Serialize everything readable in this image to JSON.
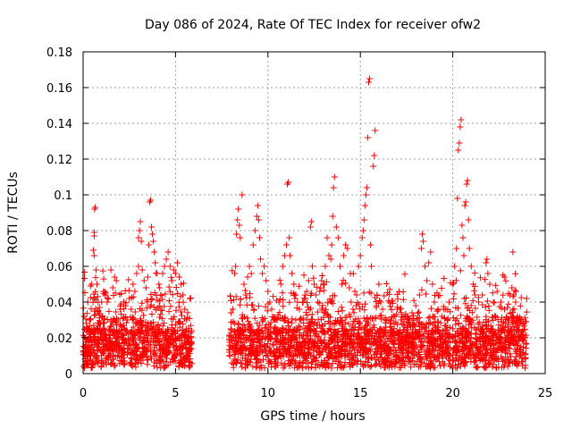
{
  "chart_data": {
    "type": "scatter",
    "title": "Day 086 of 2024, Rate Of TEC Index for receiver ofw2",
    "xlabel": "GPS time / hours",
    "ylabel": "ROTI / TECUs",
    "xlim": [
      0,
      25
    ],
    "ylim": [
      0,
      0.18
    ],
    "x_ticks": [
      0,
      5,
      10,
      15,
      20,
      25
    ],
    "x_tick_labels": [
      "0",
      "5",
      "10",
      "15",
      "20",
      "25"
    ],
    "y_ticks": [
      0,
      0.02,
      0.04,
      0.06,
      0.08,
      0.1,
      0.12,
      0.14,
      0.16,
      0.18
    ],
    "y_tick_labels": [
      "0",
      "0.02",
      "0.04",
      "0.06",
      "0.08",
      "0.1",
      "0.12",
      "0.14",
      "0.16",
      "0.18"
    ],
    "grid": true,
    "marker": "+",
    "marker_color": "#ff0000",
    "data_gap_hours": [
      5.9,
      7.9
    ],
    "series": [
      {
        "name": "ROTI",
        "points": [
          [
            0.05,
            0.032
          ],
          [
            0.1,
            0.02
          ],
          [
            0.15,
            0.014
          ],
          [
            0.2,
            0.026
          ],
          [
            0.25,
            0.04
          ],
          [
            0.3,
            0.018
          ],
          [
            0.35,
            0.03
          ],
          [
            0.4,
            0.049
          ],
          [
            0.45,
            0.05
          ],
          [
            0.5,
            0.016
          ],
          [
            0.55,
            0.069
          ],
          [
            0.6,
            0.066
          ],
          [
            0.6,
            0.077
          ],
          [
            0.6,
            0.079
          ],
          [
            0.62,
            0.092
          ],
          [
            0.65,
            0.093
          ],
          [
            0.7,
            0.058
          ],
          [
            0.75,
            0.05
          ],
          [
            0.8,
            0.035
          ],
          [
            0.9,
            0.028
          ],
          [
            1.0,
            0.04
          ],
          [
            1.1,
            0.046
          ],
          [
            1.2,
            0.044
          ],
          [
            1.3,
            0.04
          ],
          [
            1.4,
            0.022
          ],
          [
            1.5,
            0.03
          ],
          [
            1.6,
            0.048
          ],
          [
            1.7,
            0.054
          ],
          [
            1.8,
            0.052
          ],
          [
            1.9,
            0.03
          ],
          [
            2.0,
            0.036
          ],
          [
            2.1,
            0.026
          ],
          [
            2.2,
            0.04
          ],
          [
            2.3,
            0.038
          ],
          [
            2.4,
            0.03
          ],
          [
            2.5,
            0.042
          ],
          [
            2.6,
            0.036
          ],
          [
            2.7,
            0.05
          ],
          [
            2.8,
            0.046
          ],
          [
            2.9,
            0.056
          ],
          [
            3.0,
            0.06
          ],
          [
            3.0,
            0.076
          ],
          [
            3.05,
            0.08
          ],
          [
            3.1,
            0.085
          ],
          [
            3.15,
            0.074
          ],
          [
            3.2,
            0.058
          ],
          [
            3.3,
            0.052
          ],
          [
            3.4,
            0.048
          ],
          [
            3.5,
            0.054
          ],
          [
            3.55,
            0.072
          ],
          [
            3.6,
            0.096
          ],
          [
            3.65,
            0.097
          ],
          [
            3.7,
            0.082
          ],
          [
            3.75,
            0.078
          ],
          [
            3.8,
            0.074
          ],
          [
            3.85,
            0.068
          ],
          [
            3.9,
            0.062
          ],
          [
            4.0,
            0.056
          ],
          [
            4.1,
            0.05
          ],
          [
            4.2,
            0.044
          ],
          [
            4.3,
            0.056
          ],
          [
            4.4,
            0.06
          ],
          [
            4.5,
            0.064
          ],
          [
            4.6,
            0.068
          ],
          [
            4.7,
            0.06
          ],
          [
            4.8,
            0.052
          ],
          [
            4.9,
            0.058
          ],
          [
            5.0,
            0.056
          ],
          [
            5.1,
            0.062
          ],
          [
            5.2,
            0.054
          ],
          [
            5.3,
            0.05
          ],
          [
            5.4,
            0.044
          ],
          [
            5.5,
            0.036
          ],
          [
            5.6,
            0.03
          ],
          [
            5.7,
            0.024
          ],
          [
            5.8,
            0.016
          ],
          [
            7.9,
            0.012
          ],
          [
            8.0,
            0.034
          ],
          [
            8.1,
            0.036
          ],
          [
            8.2,
            0.056
          ],
          [
            8.25,
            0.06
          ],
          [
            8.3,
            0.078
          ],
          [
            8.35,
            0.086
          ],
          [
            8.4,
            0.092
          ],
          [
            8.45,
            0.083
          ],
          [
            8.5,
            0.076
          ],
          [
            8.6,
            0.1
          ],
          [
            8.7,
            0.05
          ],
          [
            8.8,
            0.044
          ],
          [
            8.9,
            0.054
          ],
          [
            9.0,
            0.06
          ],
          [
            9.1,
            0.056
          ],
          [
            9.2,
            0.072
          ],
          [
            9.3,
            0.08
          ],
          [
            9.4,
            0.088
          ],
          [
            9.45,
            0.094
          ],
          [
            9.5,
            0.086
          ],
          [
            9.55,
            0.076
          ],
          [
            9.6,
            0.064
          ],
          [
            9.7,
            0.056
          ],
          [
            9.8,
            0.06
          ],
          [
            9.9,
            0.052
          ],
          [
            10.0,
            0.046
          ],
          [
            10.1,
            0.04
          ],
          [
            10.2,
            0.036
          ],
          [
            10.3,
            0.03
          ],
          [
            10.4,
            0.026
          ],
          [
            10.5,
            0.03
          ],
          [
            10.6,
            0.04
          ],
          [
            10.7,
            0.05
          ],
          [
            10.8,
            0.06
          ],
          [
            10.9,
            0.066
          ],
          [
            11.0,
            0.072
          ],
          [
            11.05,
            0.106
          ],
          [
            11.1,
            0.107
          ],
          [
            11.15,
            0.076
          ],
          [
            11.2,
            0.066
          ],
          [
            11.3,
            0.056
          ],
          [
            11.4,
            0.05
          ],
          [
            11.5,
            0.044
          ],
          [
            11.6,
            0.04
          ],
          [
            11.7,
            0.036
          ],
          [
            11.8,
            0.03
          ],
          [
            11.9,
            0.04
          ],
          [
            12.0,
            0.044
          ],
          [
            12.1,
            0.046
          ],
          [
            12.2,
            0.052
          ],
          [
            12.3,
            0.082
          ],
          [
            12.35,
            0.085
          ],
          [
            12.4,
            0.06
          ],
          [
            12.5,
            0.05
          ],
          [
            12.6,
            0.044
          ],
          [
            12.7,
            0.04
          ],
          [
            12.8,
            0.046
          ],
          [
            12.9,
            0.052
          ],
          [
            13.0,
            0.05
          ],
          [
            13.1,
            0.06
          ],
          [
            13.2,
            0.076
          ],
          [
            13.3,
            0.066
          ],
          [
            13.4,
            0.064
          ],
          [
            13.45,
            0.072
          ],
          [
            13.5,
            0.088
          ],
          [
            13.55,
            0.104
          ],
          [
            13.6,
            0.11
          ],
          [
            13.7,
            0.082
          ],
          [
            13.8,
            0.076
          ],
          [
            13.9,
            0.06
          ],
          [
            14.0,
            0.05
          ],
          [
            14.1,
            0.066
          ],
          [
            14.2,
            0.072
          ],
          [
            14.3,
            0.07
          ],
          [
            14.4,
            0.048
          ],
          [
            14.5,
            0.04
          ],
          [
            14.6,
            0.036
          ],
          [
            14.7,
            0.046
          ],
          [
            14.8,
            0.044
          ],
          [
            14.9,
            0.06
          ],
          [
            15.0,
            0.066
          ],
          [
            15.1,
            0.076
          ],
          [
            15.15,
            0.08
          ],
          [
            15.2,
            0.086
          ],
          [
            15.25,
            0.094
          ],
          [
            15.3,
            0.1
          ],
          [
            15.35,
            0.104
          ],
          [
            15.4,
            0.132
          ],
          [
            15.45,
            0.163
          ],
          [
            15.5,
            0.165
          ],
          [
            15.55,
            0.072
          ],
          [
            15.6,
            0.06
          ],
          [
            15.7,
            0.116
          ],
          [
            15.75,
            0.122
          ],
          [
            15.8,
            0.136
          ],
          [
            15.9,
            0.044
          ],
          [
            16.0,
            0.05
          ],
          [
            16.1,
            0.04
          ],
          [
            16.2,
            0.036
          ],
          [
            16.4,
            0.03
          ],
          [
            16.6,
            0.026
          ],
          [
            16.8,
            0.032
          ],
          [
            17.0,
            0.036
          ],
          [
            17.2,
            0.03
          ],
          [
            17.4,
            0.026
          ],
          [
            17.6,
            0.03
          ],
          [
            17.8,
            0.034
          ],
          [
            18.0,
            0.038
          ],
          [
            18.2,
            0.044
          ],
          [
            18.3,
            0.07
          ],
          [
            18.35,
            0.078
          ],
          [
            18.4,
            0.074
          ],
          [
            18.5,
            0.06
          ],
          [
            18.6,
            0.052
          ],
          [
            18.7,
            0.062
          ],
          [
            18.8,
            0.068
          ],
          [
            18.9,
            0.05
          ],
          [
            19.0,
            0.04
          ],
          [
            19.2,
            0.036
          ],
          [
            19.4,
            0.032
          ],
          [
            19.6,
            0.036
          ],
          [
            19.8,
            0.04
          ],
          [
            20.0,
            0.05
          ],
          [
            20.1,
            0.06
          ],
          [
            20.2,
            0.07
          ],
          [
            20.25,
            0.098
          ],
          [
            20.3,
            0.125
          ],
          [
            20.35,
            0.129
          ],
          [
            20.4,
            0.138
          ],
          [
            20.45,
            0.142
          ],
          [
            20.5,
            0.083
          ],
          [
            20.55,
            0.076
          ],
          [
            20.6,
            0.066
          ],
          [
            20.65,
            0.094
          ],
          [
            20.7,
            0.096
          ],
          [
            20.75,
            0.106
          ],
          [
            20.8,
            0.108
          ],
          [
            20.85,
            0.086
          ],
          [
            20.9,
            0.07
          ],
          [
            21.0,
            0.06
          ],
          [
            21.1,
            0.05
          ],
          [
            21.2,
            0.044
          ],
          [
            21.4,
            0.04
          ],
          [
            21.6,
            0.044
          ],
          [
            21.8,
            0.062
          ],
          [
            21.85,
            0.064
          ],
          [
            21.9,
            0.056
          ],
          [
            22.0,
            0.05
          ],
          [
            22.2,
            0.04
          ],
          [
            22.4,
            0.046
          ],
          [
            22.6,
            0.04
          ],
          [
            22.8,
            0.036
          ],
          [
            23.0,
            0.03
          ],
          [
            23.1,
            0.044
          ],
          [
            23.2,
            0.048
          ],
          [
            23.25,
            0.068
          ],
          [
            23.3,
            0.044
          ],
          [
            23.4,
            0.04
          ],
          [
            23.5,
            0.032
          ],
          [
            23.6,
            0.028
          ],
          [
            23.7,
            0.03
          ],
          [
            23.8,
            0.022
          ],
          [
            23.9,
            0.02
          ],
          [
            24.0,
            0.042
          ]
        ]
      }
    ]
  }
}
